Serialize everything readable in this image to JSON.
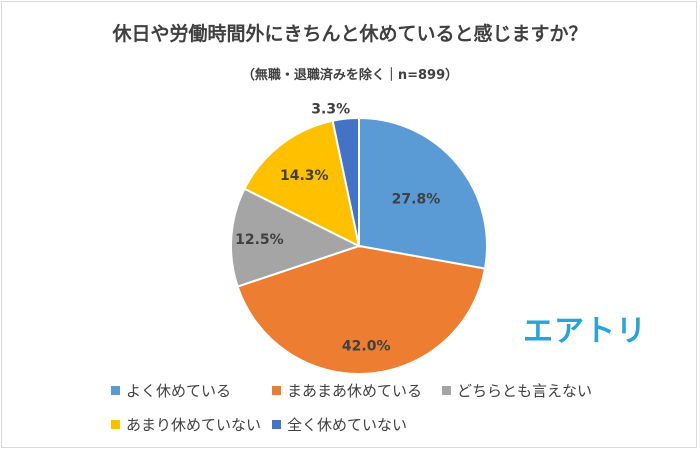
{
  "title": "休日や労働時間外にきちんと休めていると感じますか？",
  "subtitle": "（無職・退職済みを除く｜n=899）",
  "logo_text": "エアトリ",
  "chart_data": {
    "type": "pie",
    "start_angle_deg": 0,
    "direction": "clockwise",
    "slices": [
      {
        "name": "よく休めている",
        "value": 27.8,
        "label": "27.8%",
        "color": "#5b9bd5"
      },
      {
        "name": "まあまあ休めている",
        "value": 42.0,
        "label": "42.0%",
        "color": "#ed7d31"
      },
      {
        "name": "どちらとも言えない",
        "value": 12.5,
        "label": "12.5%",
        "color": "#a5a5a5"
      },
      {
        "name": "あまり休めていない",
        "value": 14.3,
        "label": "14.3%",
        "color": "#ffc000"
      },
      {
        "name": "全く休めていない",
        "value": 3.3,
        "label": "3.3%",
        "color": "#4472c4"
      }
    ],
    "legend_position": "bottom"
  }
}
